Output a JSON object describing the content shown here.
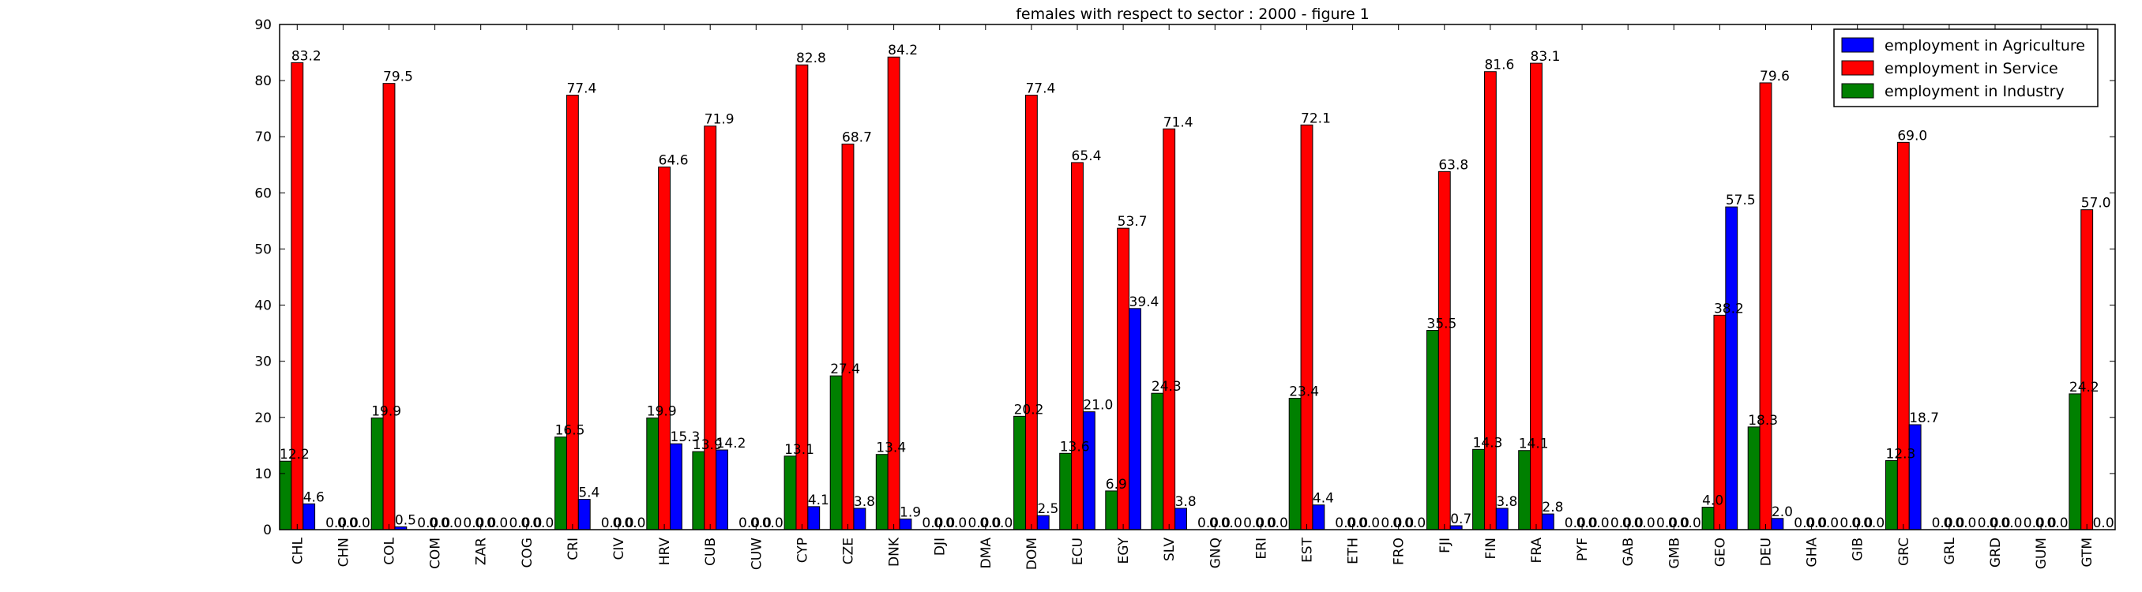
{
  "colors": {
    "agriculture": "#0000ff",
    "service": "#ff0000",
    "industry": "#008000",
    "axis": "#000000",
    "background": "#ffffff"
  },
  "chart_data": {
    "type": "bar",
    "title": "females with respect to sector : 2000 - figure 1",
    "xlabel": "",
    "ylabel": "",
    "ylim": [
      0,
      90
    ],
    "yticks": [
      0,
      10,
      20,
      30,
      40,
      50,
      60,
      70,
      80,
      90
    ],
    "grid": false,
    "legend_position": "top-right",
    "categories": [
      "CHL",
      "CHN",
      "COL",
      "COM",
      "ZAR",
      "COG",
      "CRI",
      "CIV",
      "HRV",
      "CUB",
      "CUW",
      "CYP",
      "CZE",
      "DNK",
      "DJI",
      "DMA",
      "DOM",
      "ECU",
      "EGY",
      "SLV",
      "GNQ",
      "ERI",
      "EST",
      "ETH",
      "FRO",
      "FJI",
      "FIN",
      "FRA",
      "PYF",
      "GAB",
      "GMB",
      "GEO",
      "DEU",
      "GHA",
      "GIB",
      "GRC",
      "GRL",
      "GRD",
      "GUM",
      "GTM"
    ],
    "series": [
      {
        "name": "employment in Industry",
        "values": [
          12.2,
          0.0,
          19.9,
          0.0,
          0.0,
          0.0,
          16.5,
          0.0,
          19.9,
          13.9,
          0.0,
          13.1,
          27.4,
          13.4,
          0.0,
          0.0,
          20.2,
          13.6,
          6.9,
          24.3,
          0.0,
          0.0,
          23.4,
          0.0,
          0.0,
          35.5,
          14.3,
          14.1,
          0.0,
          0.0,
          0.0,
          4.0,
          18.3,
          0.0,
          0.0,
          12.3,
          0.0,
          0.0,
          0.0,
          24.2
        ]
      },
      {
        "name": "employment in Service",
        "values": [
          83.2,
          0.0,
          79.5,
          0.0,
          0.0,
          0.0,
          77.4,
          0.0,
          64.6,
          71.9,
          0.0,
          82.8,
          68.7,
          84.2,
          0.0,
          0.0,
          77.4,
          65.4,
          53.7,
          71.4,
          0.0,
          0.0,
          72.1,
          0.0,
          0.0,
          63.8,
          81.6,
          83.1,
          0.0,
          0.0,
          0.0,
          38.2,
          79.6,
          0.0,
          0.0,
          69.0,
          0.0,
          0.0,
          0.0,
          57.0
        ]
      },
      {
        "name": "employment in Agriculture",
        "values": [
          4.6,
          0.0,
          0.5,
          0.0,
          0.0,
          0.0,
          5.4,
          0.0,
          15.3,
          14.2,
          0.0,
          4.1,
          3.8,
          1.9,
          0.0,
          0.0,
          2.5,
          21.0,
          39.4,
          3.8,
          0.0,
          0.0,
          4.4,
          0.0,
          0.0,
          0.7,
          3.8,
          2.8,
          0.0,
          0.0,
          0.0,
          57.5,
          2.0,
          0.0,
          0.0,
          18.7,
          0.0,
          0.0,
          0.0,
          0.0
        ]
      }
    ],
    "legend_order": [
      "employment in Agriculture",
      "employment in Service",
      "employment in Industry"
    ]
  }
}
